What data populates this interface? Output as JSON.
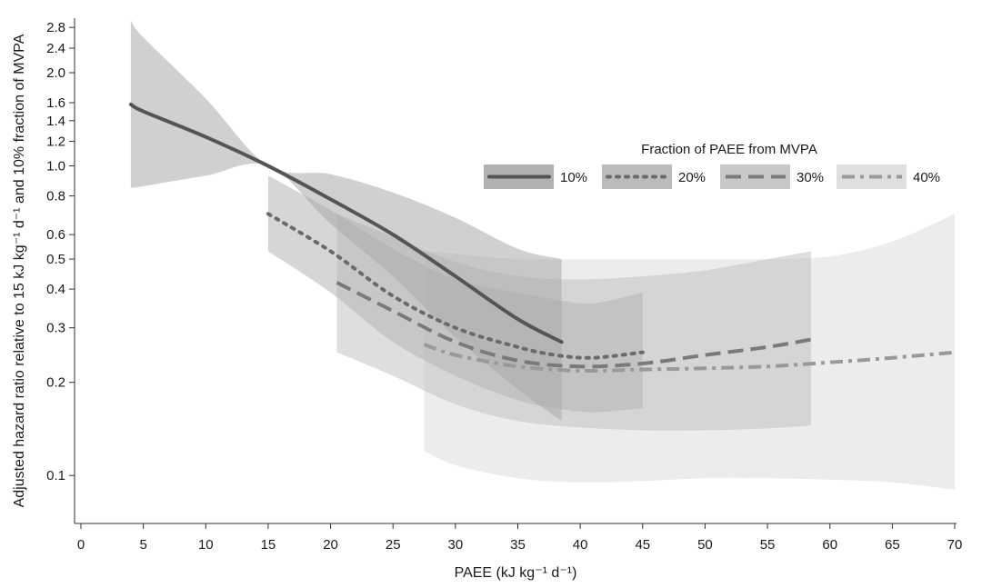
{
  "chart_data": {
    "type": "line",
    "xlabel": "PAEE (kJ kg⁻¹ d⁻¹)",
    "ylabel": "Adjusted hazard ratio relative to 15 kJ kg⁻¹ d⁻¹ and 10% fraction of MVPA",
    "xlim": [
      0,
      70
    ],
    "ylim": [
      0.07,
      3.0
    ],
    "y_scale": "log",
    "x_ticks": [
      0,
      5,
      10,
      15,
      20,
      25,
      30,
      35,
      40,
      45,
      50,
      55,
      60,
      65,
      70
    ],
    "y_ticks": [
      0.1,
      0.2,
      0.3,
      0.4,
      0.5,
      0.6,
      0.8,
      1.0,
      1.2,
      1.4,
      1.6,
      2.0,
      2.4,
      2.8
    ],
    "legend_title": "Fraction of PAEE from MVPA",
    "legend_position": "top-right",
    "grid": false,
    "series": [
      {
        "name": "10%",
        "style": "solid",
        "color": "#555555",
        "band_color": "#a9a9a9",
        "x": [
          4,
          5,
          10,
          15,
          20,
          25,
          30,
          35,
          38.5
        ],
        "y": [
          1.58,
          1.5,
          1.24,
          1.0,
          0.78,
          0.6,
          0.44,
          0.32,
          0.27
        ],
        "ci_lower": [
          0.85,
          0.86,
          0.93,
          1.0,
          0.65,
          0.44,
          0.28,
          0.19,
          0.15
        ],
        "ci_upper": [
          2.95,
          2.6,
          1.65,
          1.0,
          0.94,
          0.82,
          0.68,
          0.54,
          0.5
        ]
      },
      {
        "name": "20%",
        "style": "dotted",
        "color": "#6a6a6a",
        "band_color": "#b4b4b4",
        "x": [
          15,
          20,
          25,
          30,
          35,
          38,
          41,
          45
        ],
        "y": [
          0.7,
          0.53,
          0.38,
          0.3,
          0.26,
          0.245,
          0.24,
          0.25
        ],
        "ci_lower": [
          0.53,
          0.39,
          0.27,
          0.21,
          0.175,
          0.165,
          0.16,
          0.165
        ],
        "ci_upper": [
          0.93,
          0.72,
          0.54,
          0.43,
          0.39,
          0.37,
          0.36,
          0.39
        ]
      },
      {
        "name": "30%",
        "style": "dashed",
        "color": "#7a7a7a",
        "band_color": "#c2c2c2",
        "x": [
          20.5,
          25,
          30,
          35,
          40,
          45,
          50,
          55,
          58.5
        ],
        "y": [
          0.42,
          0.34,
          0.27,
          0.235,
          0.225,
          0.23,
          0.245,
          0.26,
          0.275
        ],
        "ci_lower": [
          0.25,
          0.21,
          0.17,
          0.15,
          0.143,
          0.14,
          0.14,
          0.142,
          0.145
        ],
        "ci_upper": [
          0.7,
          0.59,
          0.49,
          0.44,
          0.43,
          0.44,
          0.46,
          0.5,
          0.53
        ]
      },
      {
        "name": "40%",
        "style": "dash-dot",
        "color": "#999999",
        "band_color": "#dcdcdc",
        "x": [
          27.5,
          30,
          35,
          40,
          45,
          50,
          55,
          60,
          65,
          70
        ],
        "y": [
          0.265,
          0.245,
          0.225,
          0.218,
          0.22,
          0.222,
          0.225,
          0.232,
          0.24,
          0.25
        ],
        "ci_lower": [
          0.12,
          0.108,
          0.098,
          0.095,
          0.096,
          0.098,
          0.098,
          0.097,
          0.095,
          0.09
        ],
        "ci_upper": [
          0.53,
          0.52,
          0.5,
          0.5,
          0.5,
          0.5,
          0.5,
          0.51,
          0.57,
          0.7
        ]
      }
    ]
  }
}
